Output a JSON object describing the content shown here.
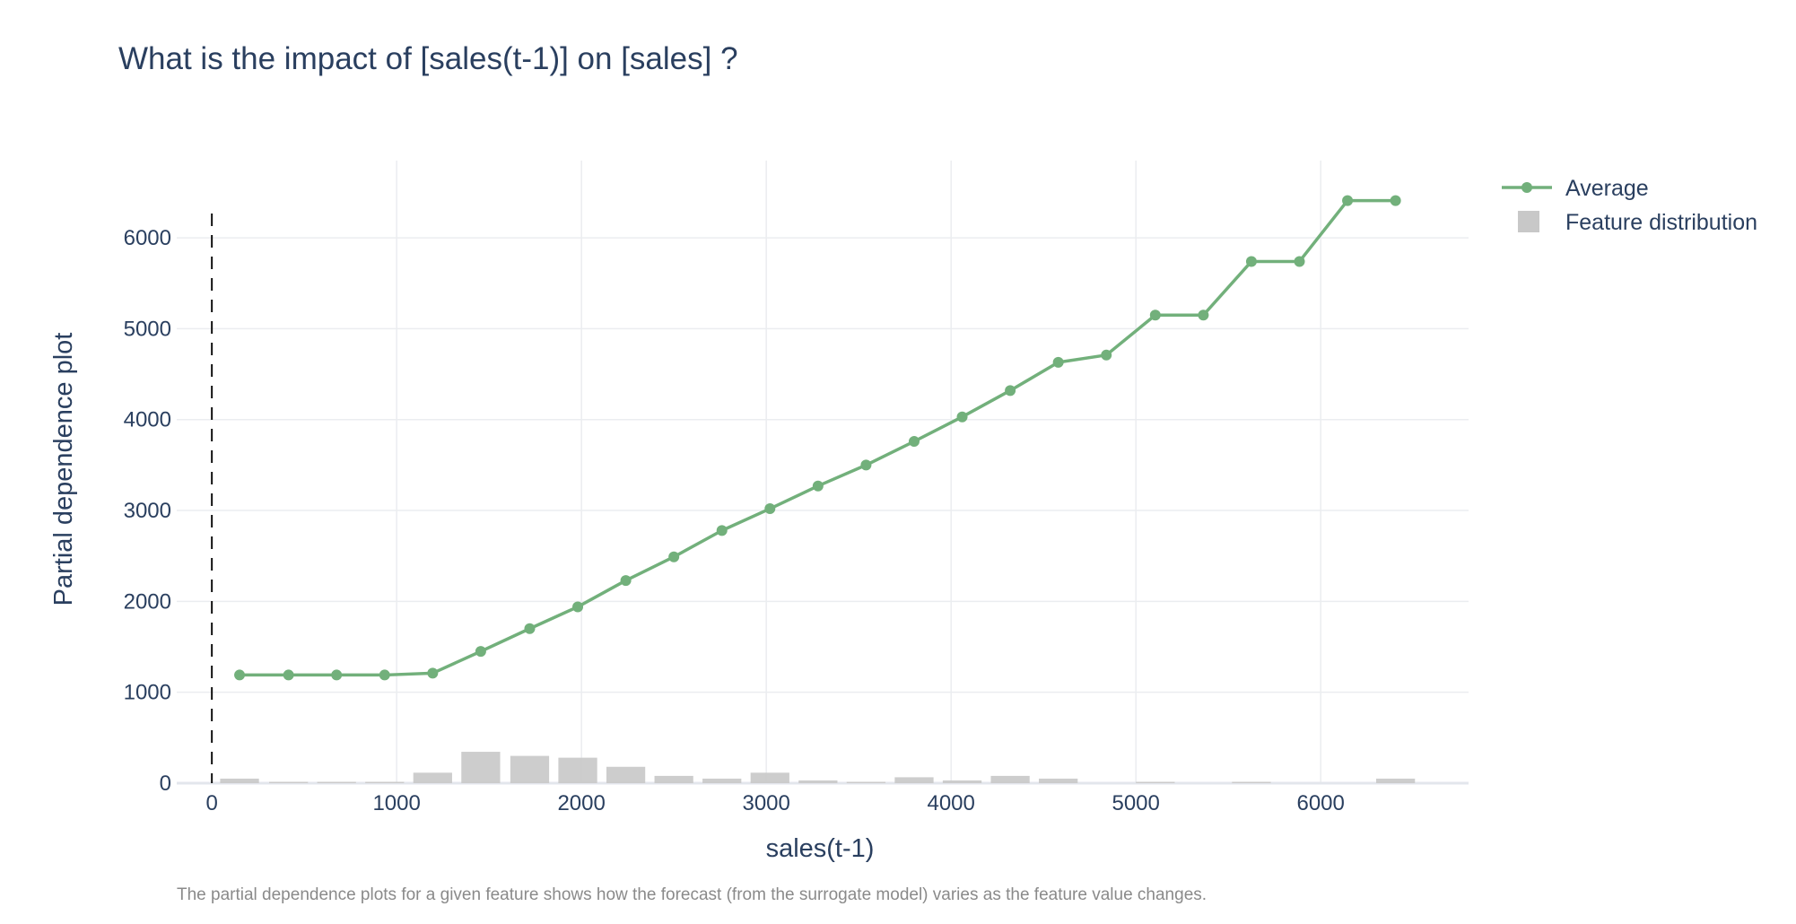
{
  "chart_data": {
    "type": "line",
    "title": "What is the impact of [sales(t-1)] on [sales] ?",
    "xlabel": "sales(t-1)",
    "ylabel": "Partial dependence plot",
    "caption": "The partial dependence plots for a given feature shows how the forecast  (from the surrogate model) varies as the feature value changes.",
    "xlim": [
      -190,
      6800
    ],
    "ylim": [
      0,
      6850
    ],
    "x_ticks": [
      0,
      1000,
      2000,
      3000,
      4000,
      5000,
      6000
    ],
    "y_ticks": [
      0,
      1000,
      2000,
      3000,
      4000,
      5000,
      6000
    ],
    "grid": true,
    "legend_position": "top-right",
    "reference_line_x": 0,
    "series": [
      {
        "name": "Average",
        "kind": "line+markers",
        "color": "#72b07b",
        "x": [
          150,
          415,
          675,
          935,
          1195,
          1455,
          1720,
          1980,
          2240,
          2500,
          2760,
          3020,
          3280,
          3540,
          3800,
          4060,
          4320,
          4580,
          4840,
          5105,
          5365,
          5625,
          5885,
          6145,
          6405
        ],
        "y": [
          1190,
          1190,
          1190,
          1190,
          1210,
          1450,
          1700,
          1940,
          2230,
          2490,
          2780,
          3020,
          3270,
          3500,
          3760,
          4030,
          4320,
          4630,
          4710,
          5150,
          5150,
          5740,
          5740,
          6410,
          6410
        ]
      },
      {
        "name": "Feature distribution",
        "kind": "bar",
        "color": "#c8c8c8",
        "bar_width": 210,
        "x": [
          150,
          415,
          675,
          935,
          1195,
          1455,
          1720,
          1980,
          2240,
          2500,
          2760,
          3020,
          3280,
          3540,
          3800,
          4060,
          4320,
          4580,
          4840,
          5105,
          5365,
          5625,
          5885,
          6145,
          6405
        ],
        "y": [
          50,
          15,
          15,
          15,
          115,
          345,
          300,
          280,
          180,
          80,
          50,
          115,
          30,
          15,
          65,
          30,
          80,
          50,
          0,
          15,
          0,
          15,
          0,
          0,
          50
        ]
      }
    ]
  }
}
